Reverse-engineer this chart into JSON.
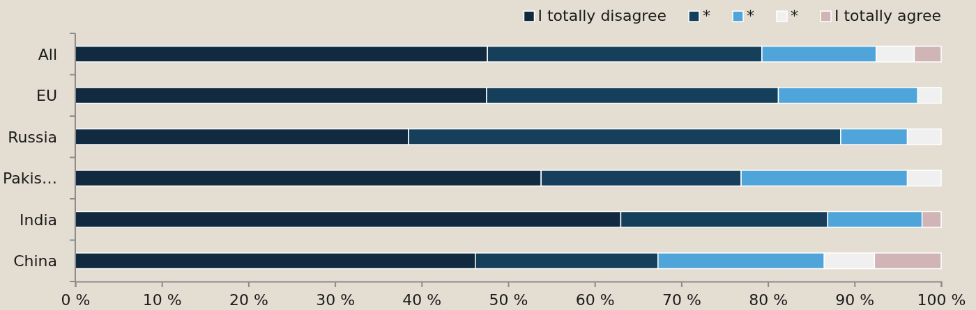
{
  "chart_data": {
    "type": "bar",
    "orientation": "horizontal",
    "stacked": true,
    "categories": [
      "All",
      "EU",
      "Russia",
      "Pakis…",
      "India",
      "China"
    ],
    "series": [
      {
        "name": "I totally disagree",
        "color": "#112a3f",
        "values": [
          47.6,
          47.5,
          38.5,
          53.8,
          63.0,
          46.2
        ]
      },
      {
        "name": "*",
        "color": "#153f5b",
        "values": [
          31.7,
          33.7,
          49.9,
          23.1,
          23.9,
          21.1
        ]
      },
      {
        "name": "*",
        "color": "#4fa5d9",
        "values": [
          13.2,
          16.1,
          7.7,
          19.2,
          10.9,
          19.2
        ]
      },
      {
        "name": "*",
        "color": "#f0f0f0",
        "values": [
          4.4,
          2.7,
          3.9,
          3.9,
          0,
          5.8
        ]
      },
      {
        "name": "I totally agree",
        "color": "#d1b4b5",
        "values": [
          3.1,
          0,
          0,
          0,
          2.2,
          7.7
        ]
      }
    ],
    "xlim": [
      0,
      100
    ],
    "xticks": [
      {
        "value": 0,
        "label": "0 %"
      },
      {
        "value": 10,
        "label": "10 %"
      },
      {
        "value": 20,
        "label": "20 %"
      },
      {
        "value": 30,
        "label": "30 %"
      },
      {
        "value": 40,
        "label": "40 %"
      },
      {
        "value": 50,
        "label": "50 %"
      },
      {
        "value": 60,
        "label": "60 %"
      },
      {
        "value": 70,
        "label": "70 %"
      },
      {
        "value": 80,
        "label": "80 %"
      },
      {
        "value": 90,
        "label": "90 %"
      },
      {
        "value": 100,
        "label": "100 %"
      }
    ],
    "legend": "top right",
    "grid": false
  }
}
